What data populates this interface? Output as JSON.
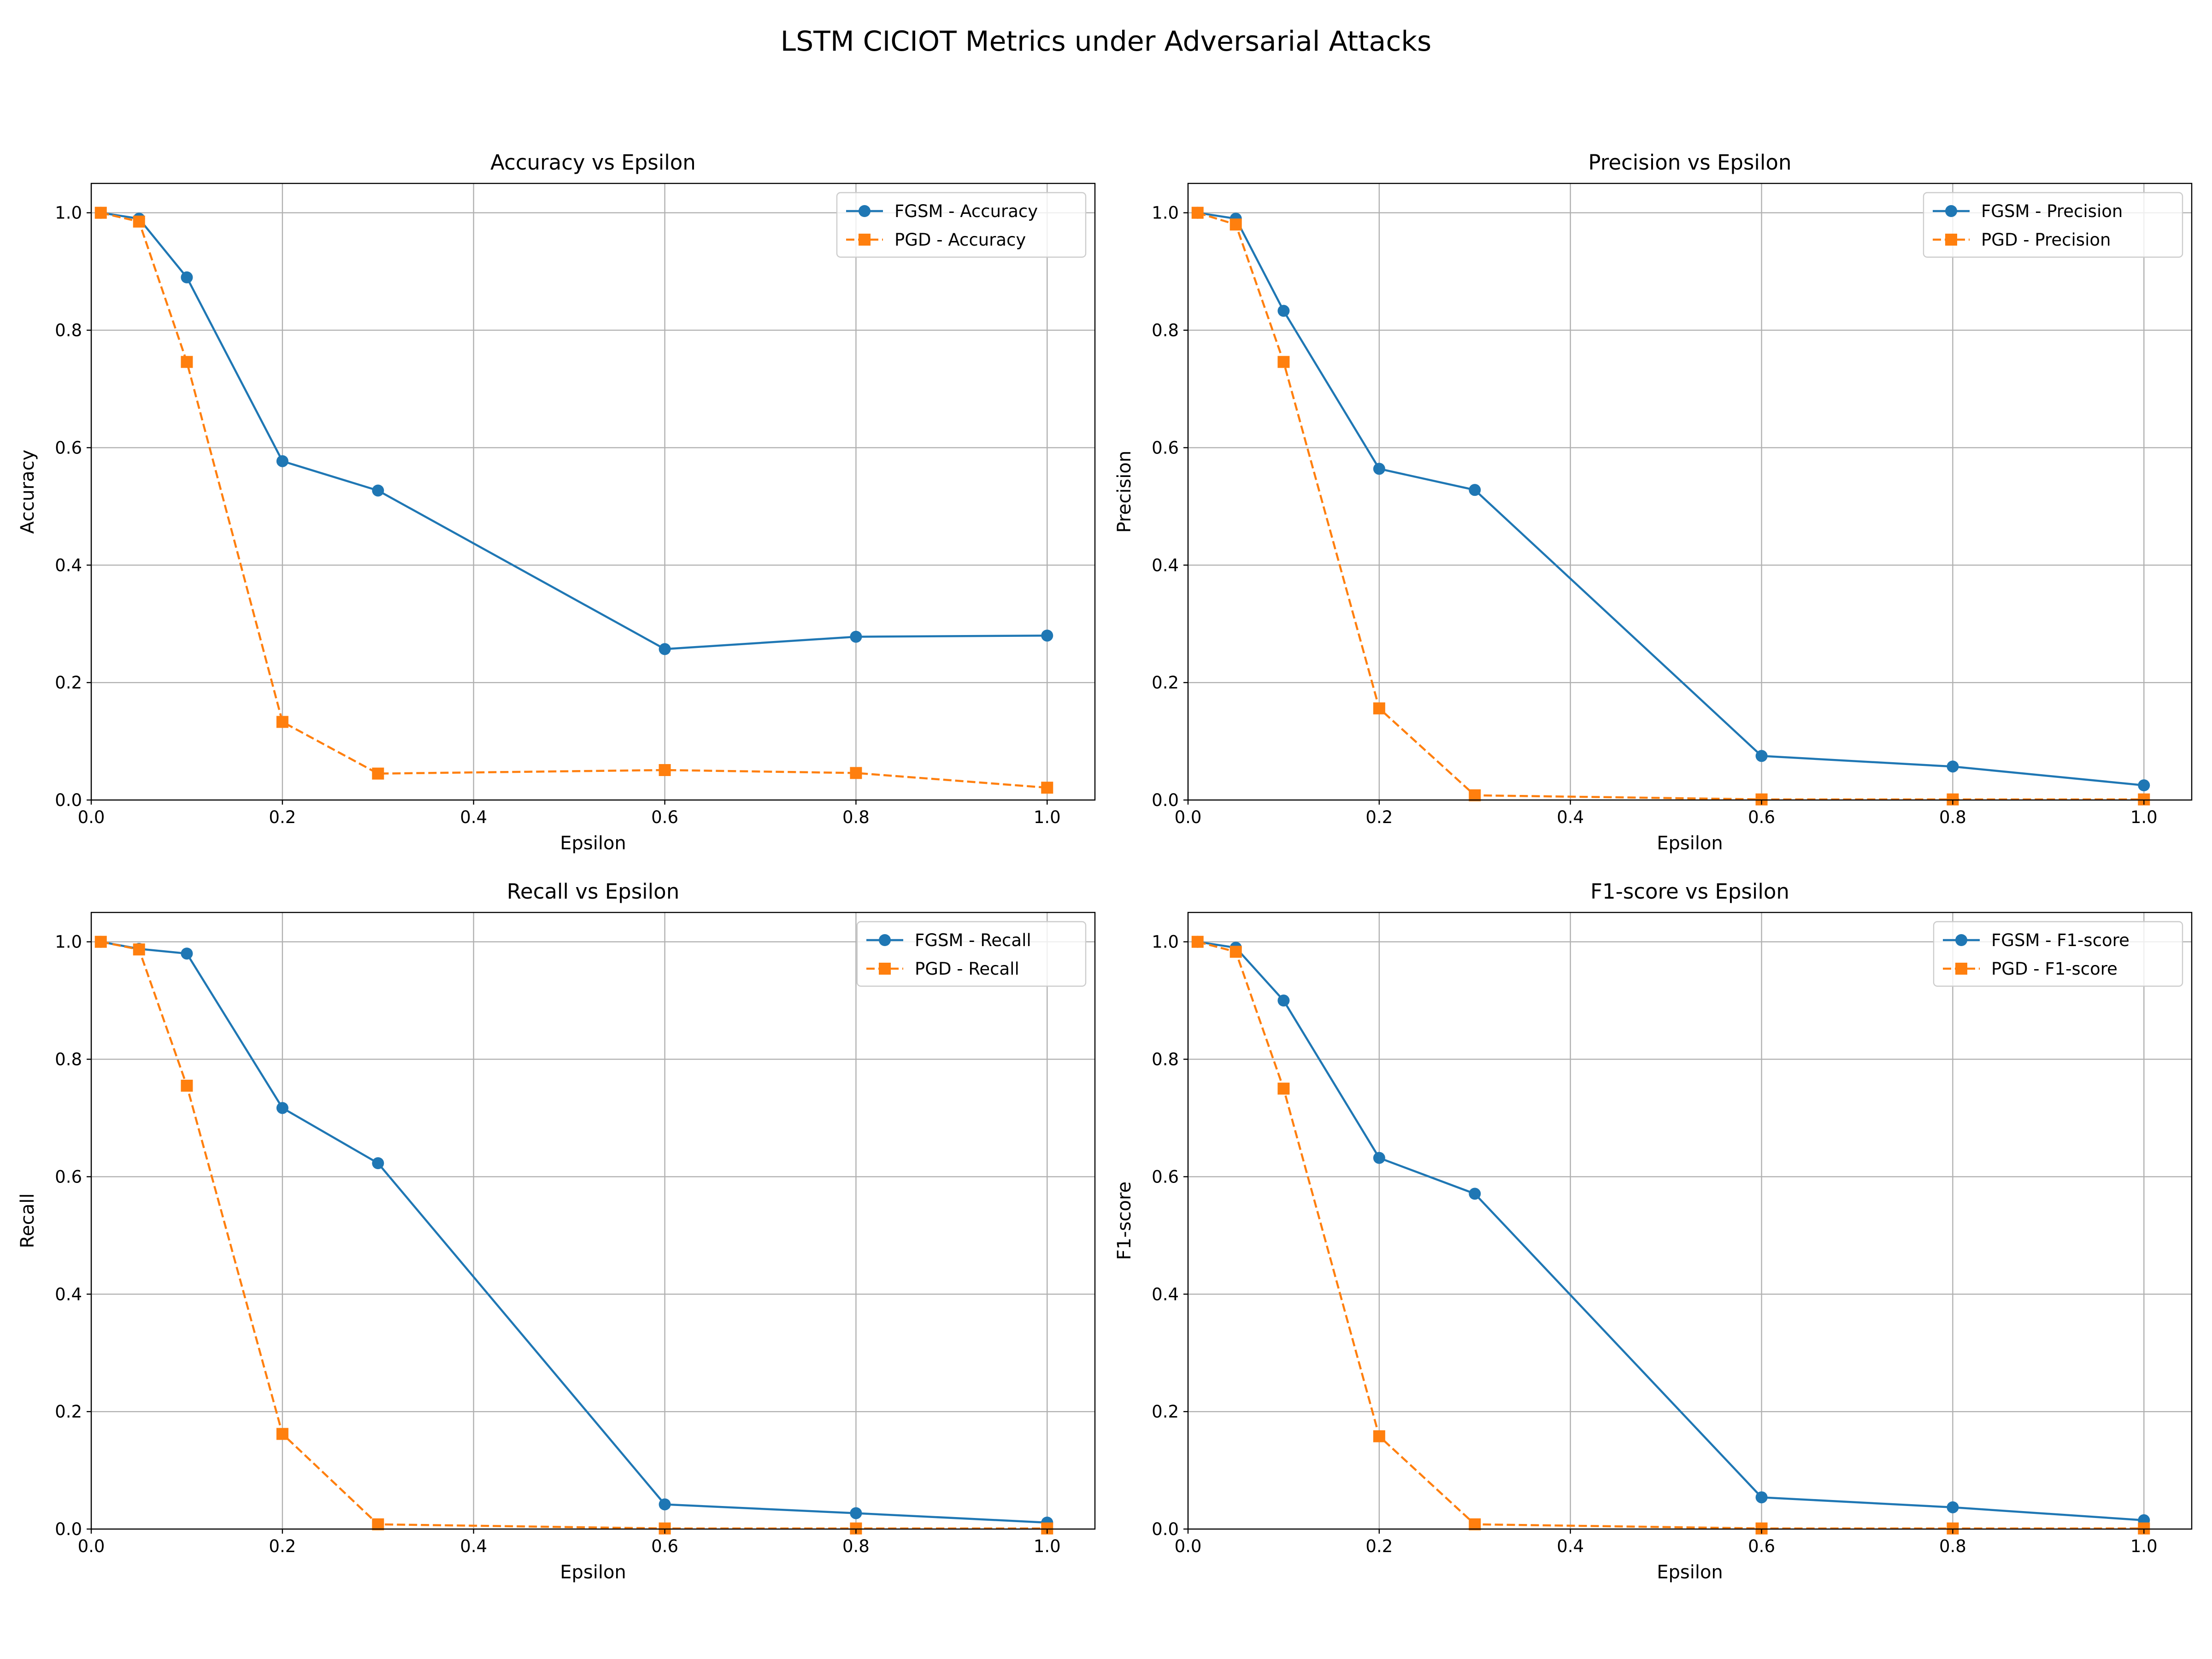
{
  "suptitle": "LSTM CICIOT Metrics under Adversarial Attacks",
  "colors": {
    "fgsm": "#1f77b4",
    "pgd": "#ff7f0e",
    "grid": "#b0b0b0",
    "axes": "#000000"
  },
  "chart_data": [
    {
      "type": "line",
      "title": "Accuracy vs Epsilon",
      "xlabel": "Epsilon",
      "ylabel": "Accuracy",
      "xlim": [
        0,
        1.05
      ],
      "ylim": [
        0,
        1.05
      ],
      "xticks": [
        "0.0",
        "0.2",
        "0.4",
        "0.6",
        "0.8",
        "1.0"
      ],
      "yticks": [
        "0.0",
        "0.2",
        "0.4",
        "0.6",
        "0.8",
        "1.0"
      ],
      "grid": true,
      "legend": "top-right",
      "x": [
        0.01,
        0.05,
        0.1,
        0.2,
        0.3,
        0.6,
        0.8,
        1.0
      ],
      "series": [
        {
          "name": "FGSM - Accuracy",
          "marker": "circle",
          "line": "solid",
          "values": [
            1.0,
            0.99,
            0.89,
            0.577,
            0.527,
            0.257,
            0.278,
            0.28
          ]
        },
        {
          "name": "PGD - Accuracy",
          "marker": "square",
          "line": "dashed",
          "values": [
            1.0,
            0.985,
            0.746,
            0.133,
            0.045,
            0.051,
            0.046,
            0.021
          ]
        }
      ]
    },
    {
      "type": "line",
      "title": "Precision vs Epsilon",
      "xlabel": "Epsilon",
      "ylabel": "Precision",
      "xlim": [
        0,
        1.05
      ],
      "ylim": [
        0,
        1.05
      ],
      "xticks": [
        "0.0",
        "0.2",
        "0.4",
        "0.6",
        "0.8",
        "1.0"
      ],
      "yticks": [
        "0.0",
        "0.2",
        "0.4",
        "0.6",
        "0.8",
        "1.0"
      ],
      "grid": true,
      "legend": "top-right",
      "x": [
        0.01,
        0.05,
        0.1,
        0.2,
        0.3,
        0.6,
        0.8,
        1.0
      ],
      "series": [
        {
          "name": "FGSM - Precision",
          "marker": "circle",
          "line": "solid",
          "values": [
            1.0,
            0.99,
            0.833,
            0.564,
            0.528,
            0.075,
            0.057,
            0.025
          ]
        },
        {
          "name": "PGD - Precision",
          "marker": "square",
          "line": "dashed",
          "values": [
            1.0,
            0.98,
            0.746,
            0.156,
            0.008,
            0.001,
            0.001,
            0.001
          ]
        }
      ]
    },
    {
      "type": "line",
      "title": "Recall vs Epsilon",
      "xlabel": "Epsilon",
      "ylabel": "Recall",
      "xlim": [
        0,
        1.05
      ],
      "ylim": [
        0,
        1.05
      ],
      "xticks": [
        "0.0",
        "0.2",
        "0.4",
        "0.6",
        "0.8",
        "1.0"
      ],
      "yticks": [
        "0.0",
        "0.2",
        "0.4",
        "0.6",
        "0.8",
        "1.0"
      ],
      "grid": true,
      "legend": "top-right",
      "x": [
        0.01,
        0.05,
        0.1,
        0.2,
        0.3,
        0.6,
        0.8,
        1.0
      ],
      "series": [
        {
          "name": "FGSM - Recall",
          "marker": "circle",
          "line": "solid",
          "values": [
            1.0,
            0.988,
            0.98,
            0.717,
            0.623,
            0.042,
            0.027,
            0.011
          ]
        },
        {
          "name": "PGD - Recall",
          "marker": "square",
          "line": "dashed",
          "values": [
            1.0,
            0.987,
            0.755,
            0.162,
            0.008,
            0.001,
            0.001,
            0.001
          ]
        }
      ]
    },
    {
      "type": "line",
      "title": "F1-score vs Epsilon",
      "xlabel": "Epsilon",
      "ylabel": "F1-score",
      "xlim": [
        0,
        1.05
      ],
      "ylim": [
        0,
        1.05
      ],
      "xticks": [
        "0.0",
        "0.2",
        "0.4",
        "0.6",
        "0.8",
        "1.0"
      ],
      "yticks": [
        "0.0",
        "0.2",
        "0.4",
        "0.6",
        "0.8",
        "1.0"
      ],
      "grid": true,
      "legend": "top-right",
      "x": [
        0.01,
        0.05,
        0.1,
        0.2,
        0.3,
        0.6,
        0.8,
        1.0
      ],
      "series": [
        {
          "name": "FGSM - F1-score",
          "marker": "circle",
          "line": "solid",
          "values": [
            1.0,
            0.99,
            0.9,
            0.632,
            0.571,
            0.054,
            0.037,
            0.015
          ]
        },
        {
          "name": "PGD - F1-score",
          "marker": "square",
          "line": "dashed",
          "values": [
            1.0,
            0.983,
            0.75,
            0.158,
            0.008,
            0.001,
            0.001,
            0.001
          ]
        }
      ]
    }
  ]
}
